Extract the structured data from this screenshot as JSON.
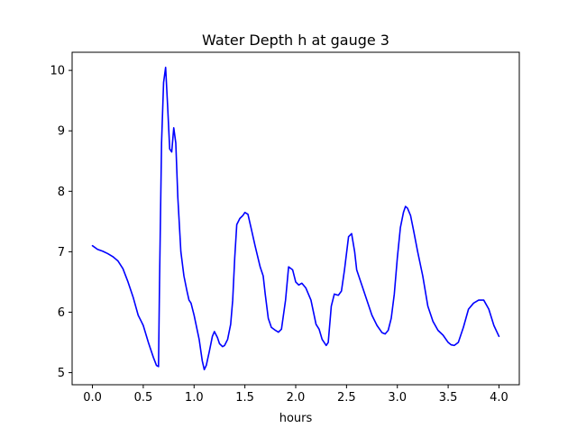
{
  "chart_data": {
    "type": "line",
    "title": "Water Depth h at gauge 3",
    "xlabel": "hours",
    "ylabel": "",
    "xlim": [
      -0.2,
      4.2
    ],
    "ylim": [
      4.8,
      10.3
    ],
    "xticks": [
      0.0,
      0.5,
      1.0,
      1.5,
      2.0,
      2.5,
      3.0,
      3.5,
      4.0
    ],
    "xtick_labels": [
      "0.0",
      "0.5",
      "1.0",
      "1.5",
      "2.0",
      "2.5",
      "3.0",
      "3.5",
      "4.0"
    ],
    "yticks": [
      5,
      6,
      7,
      8,
      9,
      10
    ],
    "ytick_labels": [
      "5",
      "6",
      "7",
      "8",
      "9",
      "10"
    ],
    "grid": false,
    "series": [
      {
        "color": "#0000ff",
        "x": [
          0.0,
          0.05,
          0.1,
          0.15,
          0.2,
          0.25,
          0.3,
          0.35,
          0.4,
          0.45,
          0.48,
          0.5,
          0.55,
          0.6,
          0.63,
          0.65,
          0.66,
          0.68,
          0.7,
          0.72,
          0.74,
          0.76,
          0.78,
          0.8,
          0.82,
          0.84,
          0.87,
          0.9,
          0.93,
          0.95,
          0.97,
          1.0,
          1.05,
          1.08,
          1.1,
          1.12,
          1.15,
          1.18,
          1.2,
          1.23,
          1.25,
          1.28,
          1.3,
          1.33,
          1.36,
          1.38,
          1.4,
          1.42,
          1.45,
          1.48,
          1.5,
          1.53,
          1.56,
          1.6,
          1.65,
          1.68,
          1.7,
          1.73,
          1.76,
          1.8,
          1.83,
          1.86,
          1.9,
          1.93,
          1.97,
          2.0,
          2.03,
          2.06,
          2.1,
          2.15,
          2.2,
          2.23,
          2.26,
          2.3,
          2.32,
          2.35,
          2.38,
          2.42,
          2.45,
          2.48,
          2.52,
          2.55,
          2.58,
          2.6,
          2.65,
          2.7,
          2.75,
          2.8,
          2.85,
          2.88,
          2.91,
          2.94,
          2.97,
          3.0,
          3.03,
          3.06,
          3.08,
          3.1,
          3.13,
          3.16,
          3.2,
          3.25,
          3.3,
          3.35,
          3.4,
          3.45,
          3.5,
          3.53,
          3.56,
          3.6,
          3.65,
          3.7,
          3.75,
          3.8,
          3.85,
          3.9,
          3.95,
          4.0
        ],
        "y": [
          7.1,
          7.04,
          7.01,
          6.97,
          6.92,
          6.85,
          6.72,
          6.5,
          6.25,
          5.95,
          5.85,
          5.78,
          5.5,
          5.25,
          5.12,
          5.1,
          6.5,
          8.8,
          9.8,
          10.05,
          9.4,
          8.7,
          8.65,
          9.05,
          8.8,
          7.9,
          7.0,
          6.6,
          6.35,
          6.2,
          6.15,
          5.95,
          5.55,
          5.2,
          5.05,
          5.12,
          5.35,
          5.6,
          5.68,
          5.58,
          5.48,
          5.43,
          5.45,
          5.55,
          5.8,
          6.2,
          6.9,
          7.45,
          7.55,
          7.6,
          7.65,
          7.62,
          7.4,
          7.1,
          6.75,
          6.6,
          6.3,
          5.9,
          5.75,
          5.7,
          5.67,
          5.72,
          6.2,
          6.75,
          6.7,
          6.5,
          6.45,
          6.48,
          6.4,
          6.2,
          5.8,
          5.72,
          5.55,
          5.45,
          5.5,
          6.1,
          6.3,
          6.28,
          6.35,
          6.7,
          7.25,
          7.3,
          7.0,
          6.7,
          6.45,
          6.2,
          5.95,
          5.78,
          5.66,
          5.64,
          5.7,
          5.9,
          6.3,
          6.9,
          7.4,
          7.65,
          7.75,
          7.72,
          7.6,
          7.35,
          7.0,
          6.6,
          6.1,
          5.85,
          5.7,
          5.62,
          5.5,
          5.46,
          5.45,
          5.5,
          5.75,
          6.05,
          6.15,
          6.2,
          6.2,
          6.05,
          5.78,
          5.6
        ]
      }
    ]
  }
}
